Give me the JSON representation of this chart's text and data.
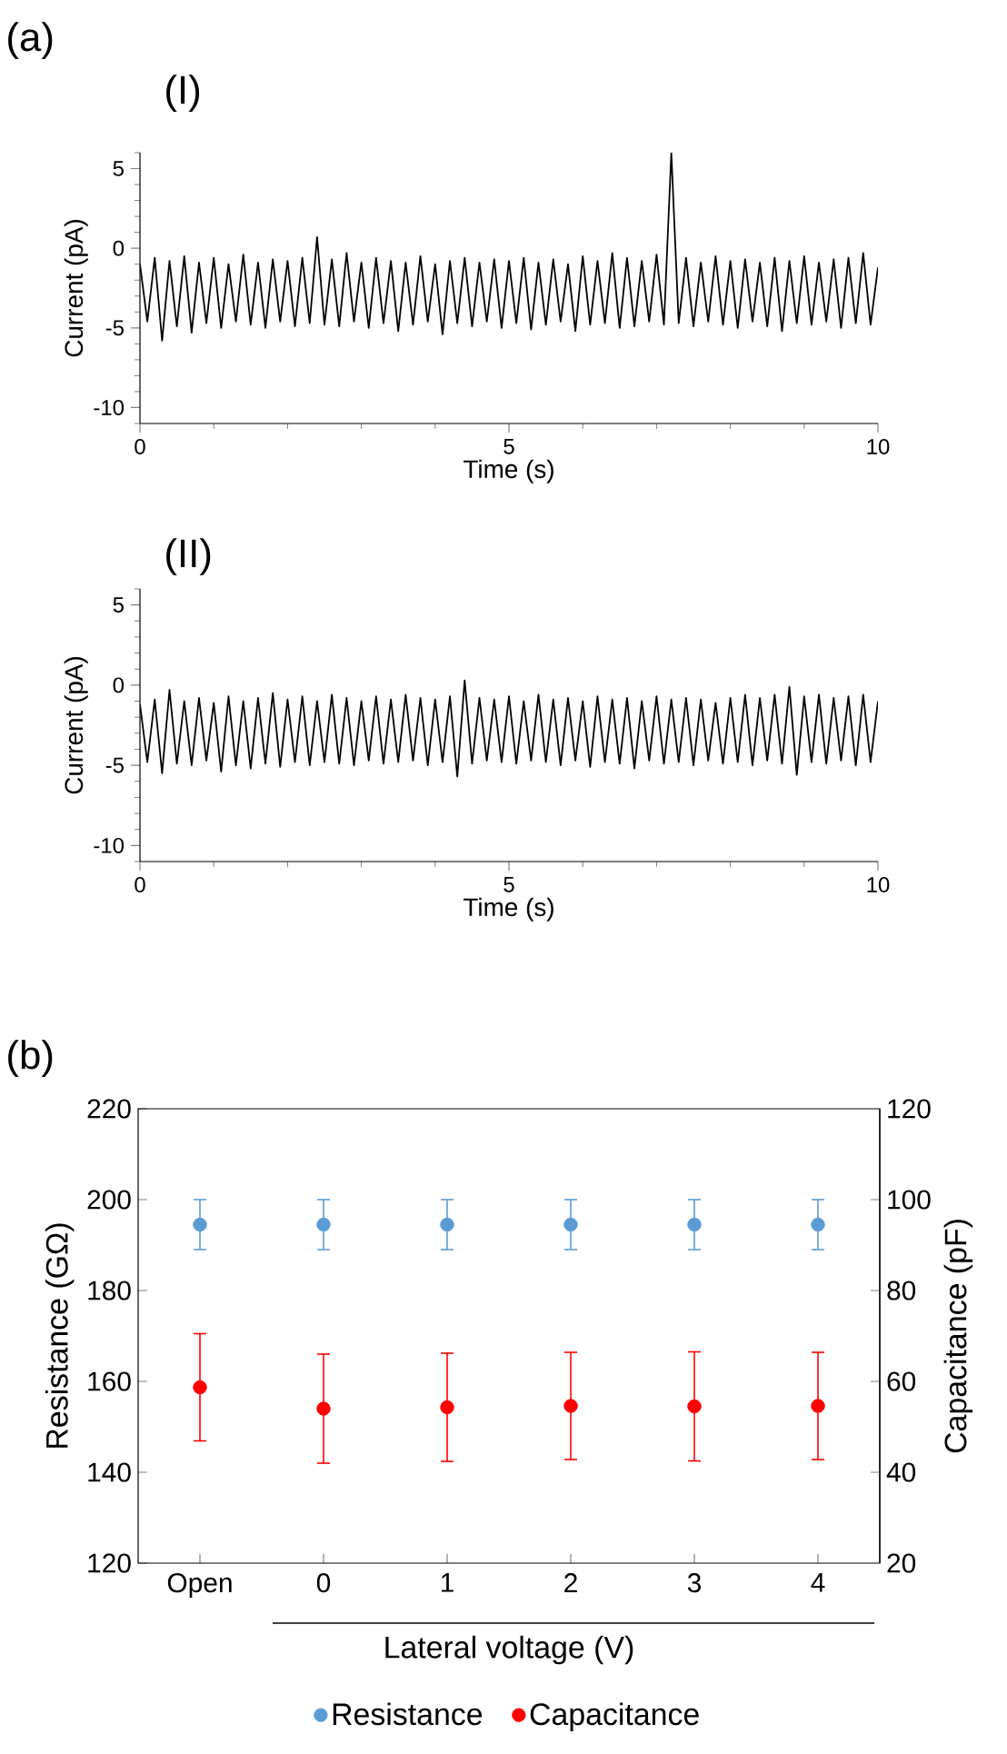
{
  "chart_data": [
    {
      "type": "line",
      "title": "(I)",
      "annotations": [
        "(a)"
      ],
      "xlabel": "Time (s)",
      "ylabel": "Current (pA)",
      "xlim": [
        0,
        10
      ],
      "ylim": [
        -11,
        6
      ],
      "xticks": [
        0,
        {
          "value": 1,
          "label": null
        },
        {
          "value": 2,
          "label": null
        },
        {
          "value": 3,
          "label": null
        },
        {
          "value": 4,
          "label": null
        },
        5,
        {
          "value": 6,
          "label": null
        },
        {
          "value": 7,
          "label": null
        },
        {
          "value": 8,
          "label": null
        },
        {
          "value": 9,
          "label": null
        },
        10
      ],
      "yticks": [
        {
          "value": -11,
          "label": null
        },
        -10,
        {
          "value": -9,
          "label": null
        },
        {
          "value": -8,
          "label": null
        },
        {
          "value": -7,
          "label": null
        },
        {
          "value": -6,
          "label": null
        },
        -5,
        {
          "value": -4,
          "label": null
        },
        {
          "value": -3,
          "label": null
        },
        {
          "value": -2,
          "label": null
        },
        {
          "value": -1,
          "label": null
        },
        0,
        {
          "value": 1,
          "label": null
        },
        {
          "value": 2,
          "label": null
        },
        {
          "value": 3,
          "label": null
        },
        {
          "value": 4,
          "label": null
        },
        5,
        {
          "value": 6,
          "label": null
        }
      ],
      "x": [
        0,
        0.1,
        0.2,
        0.3,
        0.4,
        0.5,
        0.6,
        0.7,
        0.8,
        0.9,
        1,
        1.1,
        1.2,
        1.3,
        1.4,
        1.5,
        1.6,
        1.7,
        1.8,
        1.9,
        2,
        2.1,
        2.2,
        2.3,
        2.4,
        2.5,
        2.6,
        2.7,
        2.8,
        2.9,
        3,
        3.1,
        3.2,
        3.3,
        3.4,
        3.5,
        3.6,
        3.7,
        3.8,
        3.9,
        4,
        4.1,
        4.2,
        4.3,
        4.4,
        4.5,
        4.6,
        4.7,
        4.8,
        4.9,
        5,
        5.1,
        5.2,
        5.3,
        5.4,
        5.5,
        5.6,
        5.7,
        5.8,
        5.9,
        6,
        6.1,
        6.2,
        6.3,
        6.4,
        6.5,
        6.6,
        6.7,
        6.8,
        6.9,
        7,
        7.1,
        7.2,
        7.3,
        7.4,
        7.5,
        7.6,
        7.7,
        7.8,
        7.9,
        8,
        8.1,
        8.2,
        8.3,
        8.4,
        8.5,
        8.6,
        8.7,
        8.8,
        8.9,
        9,
        9.1,
        9.2,
        9.3,
        9.4,
        9.5,
        9.6,
        9.7,
        9.8,
        9.9,
        10
      ],
      "series": [
        {
          "color": "#000000",
          "values": [
            -1.0,
            -4.6,
            -0.6,
            -5.8,
            -0.8,
            -4.9,
            -0.5,
            -5.3,
            -0.9,
            -4.7,
            -0.6,
            -5.0,
            -1.0,
            -4.6,
            -0.4,
            -4.8,
            -0.9,
            -5.0,
            -0.7,
            -4.6,
            -0.8,
            -4.9,
            -0.6,
            -4.7,
            0.7,
            -4.8,
            -0.7,
            -4.9,
            -0.3,
            -4.6,
            -0.9,
            -5.0,
            -0.6,
            -4.7,
            -0.8,
            -5.2,
            -0.9,
            -4.8,
            -0.5,
            -4.6,
            -1.0,
            -5.4,
            -0.8,
            -4.7,
            -0.6,
            -4.9,
            -0.9,
            -4.6,
            -0.7,
            -5.0,
            -0.8,
            -4.7,
            -0.6,
            -5.1,
            -0.9,
            -4.8,
            -0.7,
            -4.6,
            -1.0,
            -5.2,
            -0.5,
            -4.8,
            -0.8,
            -4.7,
            -0.3,
            -5.0,
            -0.6,
            -4.9,
            -0.8,
            -4.6,
            -0.4,
            -4.8,
            6,
            -4.7,
            -0.6,
            -4.9,
            -0.9,
            -4.6,
            -0.5,
            -4.8,
            -0.8,
            -5.0,
            -0.7,
            -4.6,
            -0.9,
            -4.9,
            -0.6,
            -5.2,
            -0.8,
            -4.7,
            -0.5,
            -4.8,
            -0.9,
            -4.6,
            -0.7,
            -5.0,
            -0.6,
            -4.7,
            -0.3,
            -4.8,
            -1.2
          ]
        }
      ]
    },
    {
      "type": "line",
      "title": "(II)",
      "xlabel": "Time (s)",
      "ylabel": "Current (pA)",
      "xlim": [
        0,
        10
      ],
      "ylim": [
        -11,
        6
      ],
      "xticks": [
        0,
        {
          "value": 1,
          "label": null
        },
        {
          "value": 2,
          "label": null
        },
        {
          "value": 3,
          "label": null
        },
        {
          "value": 4,
          "label": null
        },
        5,
        {
          "value": 6,
          "label": null
        },
        {
          "value": 7,
          "label": null
        },
        {
          "value": 8,
          "label": null
        },
        {
          "value": 9,
          "label": null
        },
        10
      ],
      "yticks": [
        {
          "value": -11,
          "label": null
        },
        -10,
        {
          "value": -9,
          "label": null
        },
        {
          "value": -8,
          "label": null
        },
        {
          "value": -7,
          "label": null
        },
        {
          "value": -6,
          "label": null
        },
        -5,
        {
          "value": -4,
          "label": null
        },
        {
          "value": -3,
          "label": null
        },
        {
          "value": -2,
          "label": null
        },
        {
          "value": -1,
          "label": null
        },
        0,
        {
          "value": 1,
          "label": null
        },
        {
          "value": 2,
          "label": null
        },
        {
          "value": 3,
          "label": null
        },
        {
          "value": 4,
          "label": null
        },
        5,
        {
          "value": 6,
          "label": null
        }
      ],
      "x": [
        0,
        0.1,
        0.2,
        0.3,
        0.4,
        0.5,
        0.6,
        0.7,
        0.8,
        0.9,
        1,
        1.1,
        1.2,
        1.3,
        1.4,
        1.5,
        1.6,
        1.7,
        1.8,
        1.9,
        2,
        2.1,
        2.2,
        2.3,
        2.4,
        2.5,
        2.6,
        2.7,
        2.8,
        2.9,
        3,
        3.1,
        3.2,
        3.3,
        3.4,
        3.5,
        3.6,
        3.7,
        3.8,
        3.9,
        4,
        4.1,
        4.2,
        4.3,
        4.4,
        4.5,
        4.6,
        4.7,
        4.8,
        4.9,
        5,
        5.1,
        5.2,
        5.3,
        5.4,
        5.5,
        5.6,
        5.7,
        5.8,
        5.9,
        6,
        6.1,
        6.2,
        6.3,
        6.4,
        6.5,
        6.6,
        6.7,
        6.8,
        6.9,
        7,
        7.1,
        7.2,
        7.3,
        7.4,
        7.5,
        7.6,
        7.7,
        7.8,
        7.9,
        8,
        8.1,
        8.2,
        8.3,
        8.4,
        8.5,
        8.6,
        8.7,
        8.8,
        8.9,
        9,
        9.1,
        9.2,
        9.3,
        9.4,
        9.5,
        9.6,
        9.7,
        9.8,
        9.9,
        10
      ],
      "series": [
        {
          "color": "#000000",
          "values": [
            -1.2,
            -4.8,
            -0.9,
            -5.5,
            -0.3,
            -4.9,
            -1.0,
            -5.0,
            -0.8,
            -4.7,
            -1.1,
            -5.4,
            -0.7,
            -5.0,
            -1.0,
            -5.2,
            -0.8,
            -4.9,
            -0.5,
            -5.1,
            -0.9,
            -4.8,
            -0.7,
            -5.0,
            -1.0,
            -4.8,
            -0.6,
            -4.9,
            -0.8,
            -5.0,
            -1.0,
            -4.7,
            -0.7,
            -4.9,
            -0.9,
            -4.8,
            -0.6,
            -4.7,
            -0.8,
            -5.0,
            -0.9,
            -4.8,
            -0.7,
            -5.7,
            0.3,
            -4.9,
            -0.8,
            -4.7,
            -0.9,
            -4.8,
            -0.7,
            -4.9,
            -1.0,
            -4.7,
            -0.6,
            -4.8,
            -0.9,
            -5.0,
            -0.8,
            -4.7,
            -1.0,
            -5.1,
            -0.7,
            -4.8,
            -0.9,
            -4.9,
            -0.8,
            -5.2,
            -1.0,
            -4.7,
            -0.7,
            -4.9,
            -0.9,
            -4.8,
            -0.8,
            -5.0,
            -0.9,
            -4.7,
            -1.1,
            -4.9,
            -0.8,
            -4.8,
            -0.6,
            -5.0,
            -0.8,
            -4.7,
            -0.6,
            -4.9,
            -0.1,
            -5.6,
            -0.7,
            -4.8,
            -0.6,
            -4.9,
            -0.8,
            -4.7,
            -0.7,
            -5.0,
            -0.6,
            -4.8,
            -1.0
          ]
        }
      ]
    },
    {
      "type": "scatter",
      "title": "(b)",
      "xlabel": "Lateral voltage (V)",
      "ylabel": "Resistance (GΩ)",
      "y2label": "Capacitance (pF)",
      "categories": [
        "Open",
        "0",
        "1",
        "2",
        "3",
        "4"
      ],
      "ylim": [
        120,
        220
      ],
      "yticks": [
        120,
        140,
        160,
        180,
        200,
        220
      ],
      "y2lim": [
        20,
        120
      ],
      "y2ticks": [
        20,
        40,
        60,
        80,
        100,
        120
      ],
      "legend": "bottom",
      "marker": "circle",
      "series": [
        {
          "name": "Resistance",
          "color": "#5b9bd5",
          "values": [
            194.5,
            194.5,
            194.5,
            194.5,
            194.5,
            194.5
          ],
          "errors": [
            5.5,
            5.5,
            5.5,
            5.5,
            5.5,
            5.5
          ]
        },
        {
          "name": "Capacitance",
          "color": "#ff0000",
          "axis": "y2",
          "values": [
            58.7,
            54.0,
            54.3,
            54.6,
            54.5,
            54.6
          ],
          "errors": [
            11.8,
            12.0,
            11.9,
            11.8,
            12.0,
            11.8
          ]
        }
      ]
    }
  ]
}
